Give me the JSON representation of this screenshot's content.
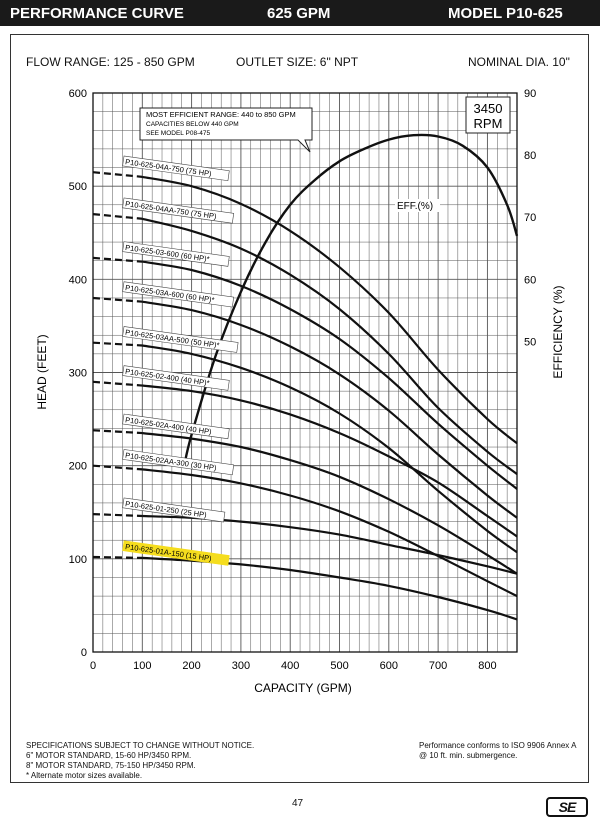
{
  "header": {
    "title": "PERFORMANCE CURVE",
    "gpm": "625 GPM",
    "model": "MODEL  P10-625"
  },
  "info": {
    "flow_range": "FLOW RANGE: 125 - 850 GPM",
    "outlet": "OUTLET SIZE: 6\" NPT",
    "nominal": "NOMINAL DIA. 10\""
  },
  "note": {
    "line1": "MOST EFFICIENT RANGE: 440 to 850 GPM",
    "line2": "CAPACITIES BELOW 440 GPM",
    "line3": "SEE  MODEL    P08-475"
  },
  "rpm": {
    "line1": "3450",
    "line2": "RPM"
  },
  "eff_label": "EFF.(%)",
  "footer": {
    "left": [
      "SPECIFICATIONS SUBJECT TO CHANGE WITHOUT NOTICE.",
      "6\" MOTOR STANDARD, 15-60 HP/3450 RPM.",
      "8\" MOTOR STANDARD, 75-150 HP/3450 RPM.",
      "* Alternate motor sizes available."
    ],
    "right": [
      "Performance conforms to ISO 9906 Annex A",
      "@ 10 ft. min. submergence."
    ],
    "page": "47",
    "logo": "SE"
  },
  "chart_data": {
    "type": "line",
    "xlabel": "CAPACITY (GPM)",
    "ylabel": "HEAD (FEET)",
    "y2label": "EFFICIENCY (%)",
    "xlim": [
      0,
      860
    ],
    "ylim": [
      0,
      600
    ],
    "y2lim": [
      0,
      90
    ],
    "xticks": [
      0,
      100,
      200,
      300,
      400,
      500,
      600,
      700,
      800
    ],
    "yticks": [
      0,
      100,
      200,
      300,
      400,
      500,
      600
    ],
    "y2ticks": [
      50,
      60,
      70,
      80,
      90
    ],
    "grid": true,
    "highlight_color": "#f5dd1e",
    "series": [
      {
        "name": "P10-625-04A-750 (75 HP)",
        "shutoff": 515,
        "points": [
          [
            100,
            510
          ],
          [
            200,
            500
          ],
          [
            300,
            481
          ],
          [
            400,
            452
          ],
          [
            500,
            413
          ],
          [
            600,
            364
          ],
          [
            700,
            303
          ],
          [
            800,
            250
          ],
          [
            860,
            224
          ]
        ]
      },
      {
        "name": "P10-625-04AA-750 (75 HP)",
        "shutoff": 470,
        "points": [
          [
            100,
            465
          ],
          [
            200,
            452
          ],
          [
            300,
            433
          ],
          [
            400,
            405
          ],
          [
            500,
            368
          ],
          [
            600,
            320
          ],
          [
            700,
            262
          ],
          [
            800,
            215
          ],
          [
            860,
            191
          ]
        ]
      },
      {
        "name": "P10-625-03-600 (60 HP)*",
        "shutoff": 423,
        "points": [
          [
            100,
            419
          ],
          [
            200,
            410
          ],
          [
            300,
            393
          ],
          [
            400,
            368
          ],
          [
            500,
            336
          ],
          [
            600,
            294
          ],
          [
            700,
            245
          ],
          [
            800,
            200
          ],
          [
            860,
            175
          ]
        ]
      },
      {
        "name": "P10-625-03A-600 (60 HP)*",
        "shutoff": 380,
        "points": [
          [
            100,
            376
          ],
          [
            200,
            367
          ],
          [
            300,
            351
          ],
          [
            400,
            328
          ],
          [
            500,
            298
          ],
          [
            600,
            259
          ],
          [
            700,
            212
          ],
          [
            800,
            168
          ],
          [
            860,
            144
          ]
        ]
      },
      {
        "name": "P10-625-03AA-500 (50 HP)*",
        "shutoff": 332,
        "points": [
          [
            100,
            329
          ],
          [
            200,
            320
          ],
          [
            300,
            305
          ],
          [
            400,
            284
          ],
          [
            500,
            256
          ],
          [
            600,
            219
          ],
          [
            700,
            173
          ],
          [
            800,
            130
          ],
          [
            860,
            107
          ]
        ]
      },
      {
        "name": "P10-625-02-400 (40 HP)*",
        "shutoff": 290,
        "points": [
          [
            100,
            286
          ],
          [
            200,
            280
          ],
          [
            300,
            270
          ],
          [
            400,
            255
          ],
          [
            500,
            235
          ],
          [
            600,
            210
          ],
          [
            700,
            182
          ],
          [
            800,
            146
          ],
          [
            860,
            124
          ]
        ]
      },
      {
        "name": "P10-625-02A-400 (40 HP)",
        "shutoff": 238,
        "points": [
          [
            100,
            235
          ],
          [
            200,
            229
          ],
          [
            300,
            220
          ],
          [
            400,
            206
          ],
          [
            500,
            188
          ],
          [
            600,
            164
          ],
          [
            700,
            136
          ],
          [
            800,
            104
          ],
          [
            860,
            84
          ]
        ]
      },
      {
        "name": "P10-625-02AA-300 (30 HP)",
        "shutoff": 200,
        "points": [
          [
            100,
            196
          ],
          [
            200,
            190
          ],
          [
            300,
            181
          ],
          [
            400,
            168
          ],
          [
            500,
            151
          ],
          [
            600,
            129
          ],
          [
            700,
            103
          ],
          [
            800,
            76
          ],
          [
            860,
            60
          ]
        ]
      },
      {
        "name": "P10-625-01-250 (25 HP)",
        "shutoff": 148,
        "points": [
          [
            100,
            146
          ],
          [
            200,
            144
          ],
          [
            300,
            140
          ],
          [
            400,
            134
          ],
          [
            500,
            126
          ],
          [
            600,
            115
          ],
          [
            700,
            104
          ],
          [
            800,
            92
          ],
          [
            860,
            84
          ]
        ]
      },
      {
        "name": "P10-625-01A-150 (15 HP)",
        "shutoff": 102,
        "highlight": true,
        "points": [
          [
            100,
            101
          ],
          [
            200,
            98
          ],
          [
            300,
            94
          ],
          [
            400,
            88
          ],
          [
            500,
            80
          ],
          [
            600,
            71
          ],
          [
            700,
            59
          ],
          [
            800,
            45
          ],
          [
            860,
            35
          ]
        ]
      }
    ],
    "efficiency": {
      "name": "EFF.(%)",
      "points": [
        [
          185,
          30
        ],
        [
          200,
          35
        ],
        [
          250,
          48
        ],
        [
          300,
          58
        ],
        [
          350,
          66
        ],
        [
          400,
          72
        ],
        [
          450,
          76
        ],
        [
          500,
          79
        ],
        [
          550,
          81
        ],
        [
          600,
          82.5
        ],
        [
          650,
          83.2
        ],
        [
          700,
          83
        ],
        [
          750,
          81.5
        ],
        [
          800,
          78
        ],
        [
          840,
          72
        ],
        [
          860,
          67
        ]
      ]
    }
  }
}
